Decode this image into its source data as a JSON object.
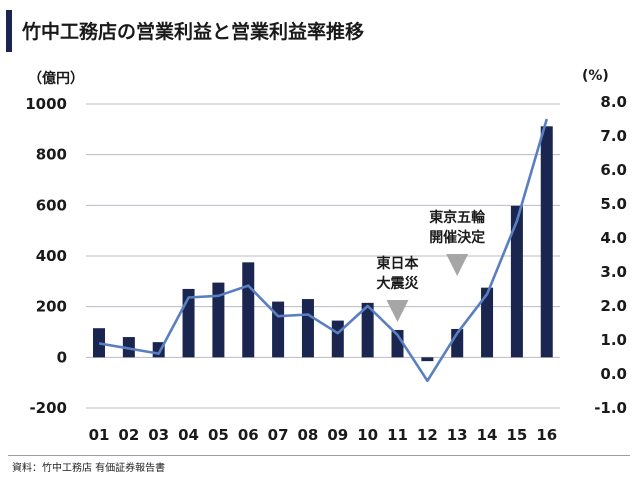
{
  "title": "竹中工務店の営業利益と営業利益率推移",
  "source": "資料：竹中工務店 有価証券報告書",
  "chart_data": {
    "type": "bar",
    "title": "竹中工務店の営業利益と営業利益率推移",
    "categories": [
      "01",
      "02",
      "03",
      "04",
      "05",
      "06",
      "07",
      "08",
      "09",
      "10",
      "11",
      "12",
      "13",
      "14",
      "15",
      "16"
    ],
    "series": [
      {
        "kind": "bar",
        "axis": "left",
        "color": "#1a2550",
        "values": [
          115,
          80,
          60,
          270,
          295,
          375,
          220,
          230,
          145,
          215,
          108,
          -15,
          112,
          275,
          598,
          912
        ]
      },
      {
        "kind": "line",
        "axis": "right",
        "color": "#5a7fc0",
        "values": [
          0.9,
          0.75,
          0.6,
          2.25,
          2.3,
          2.6,
          1.7,
          1.75,
          1.2,
          2.0,
          1.15,
          -0.2,
          1.2,
          2.35,
          4.5,
          7.5
        ]
      }
    ],
    "y_left": {
      "unit_label": "（億円）",
      "ylim": [
        -200,
        1000
      ],
      "ticks": [
        1000,
        800,
        600,
        400,
        200,
        0,
        -200
      ],
      "tick_labels": [
        "1000",
        "800",
        "600",
        "400",
        "200",
        "0",
        "-200"
      ]
    },
    "y_right": {
      "unit_label": "(%)",
      "ylim": [
        -1.0,
        8.0
      ],
      "ticks": [
        8.0,
        7.0,
        6.0,
        5.0,
        4.0,
        3.0,
        2.0,
        1.0,
        0.0,
        -1.0
      ],
      "tick_labels": [
        "8.0",
        "7.0",
        "6.0",
        "5.0",
        "4.0",
        "3.0",
        "2.0",
        "1.0",
        "0.0",
        "-1.0"
      ]
    },
    "grid": true,
    "annotations": [
      {
        "category": "11",
        "lines": [
          "東日本",
          "大震災"
        ],
        "marker": "down-triangle"
      },
      {
        "category": "13",
        "lines": [
          "東京五輪",
          "開催決定"
        ],
        "marker": "down-triangle"
      }
    ]
  }
}
